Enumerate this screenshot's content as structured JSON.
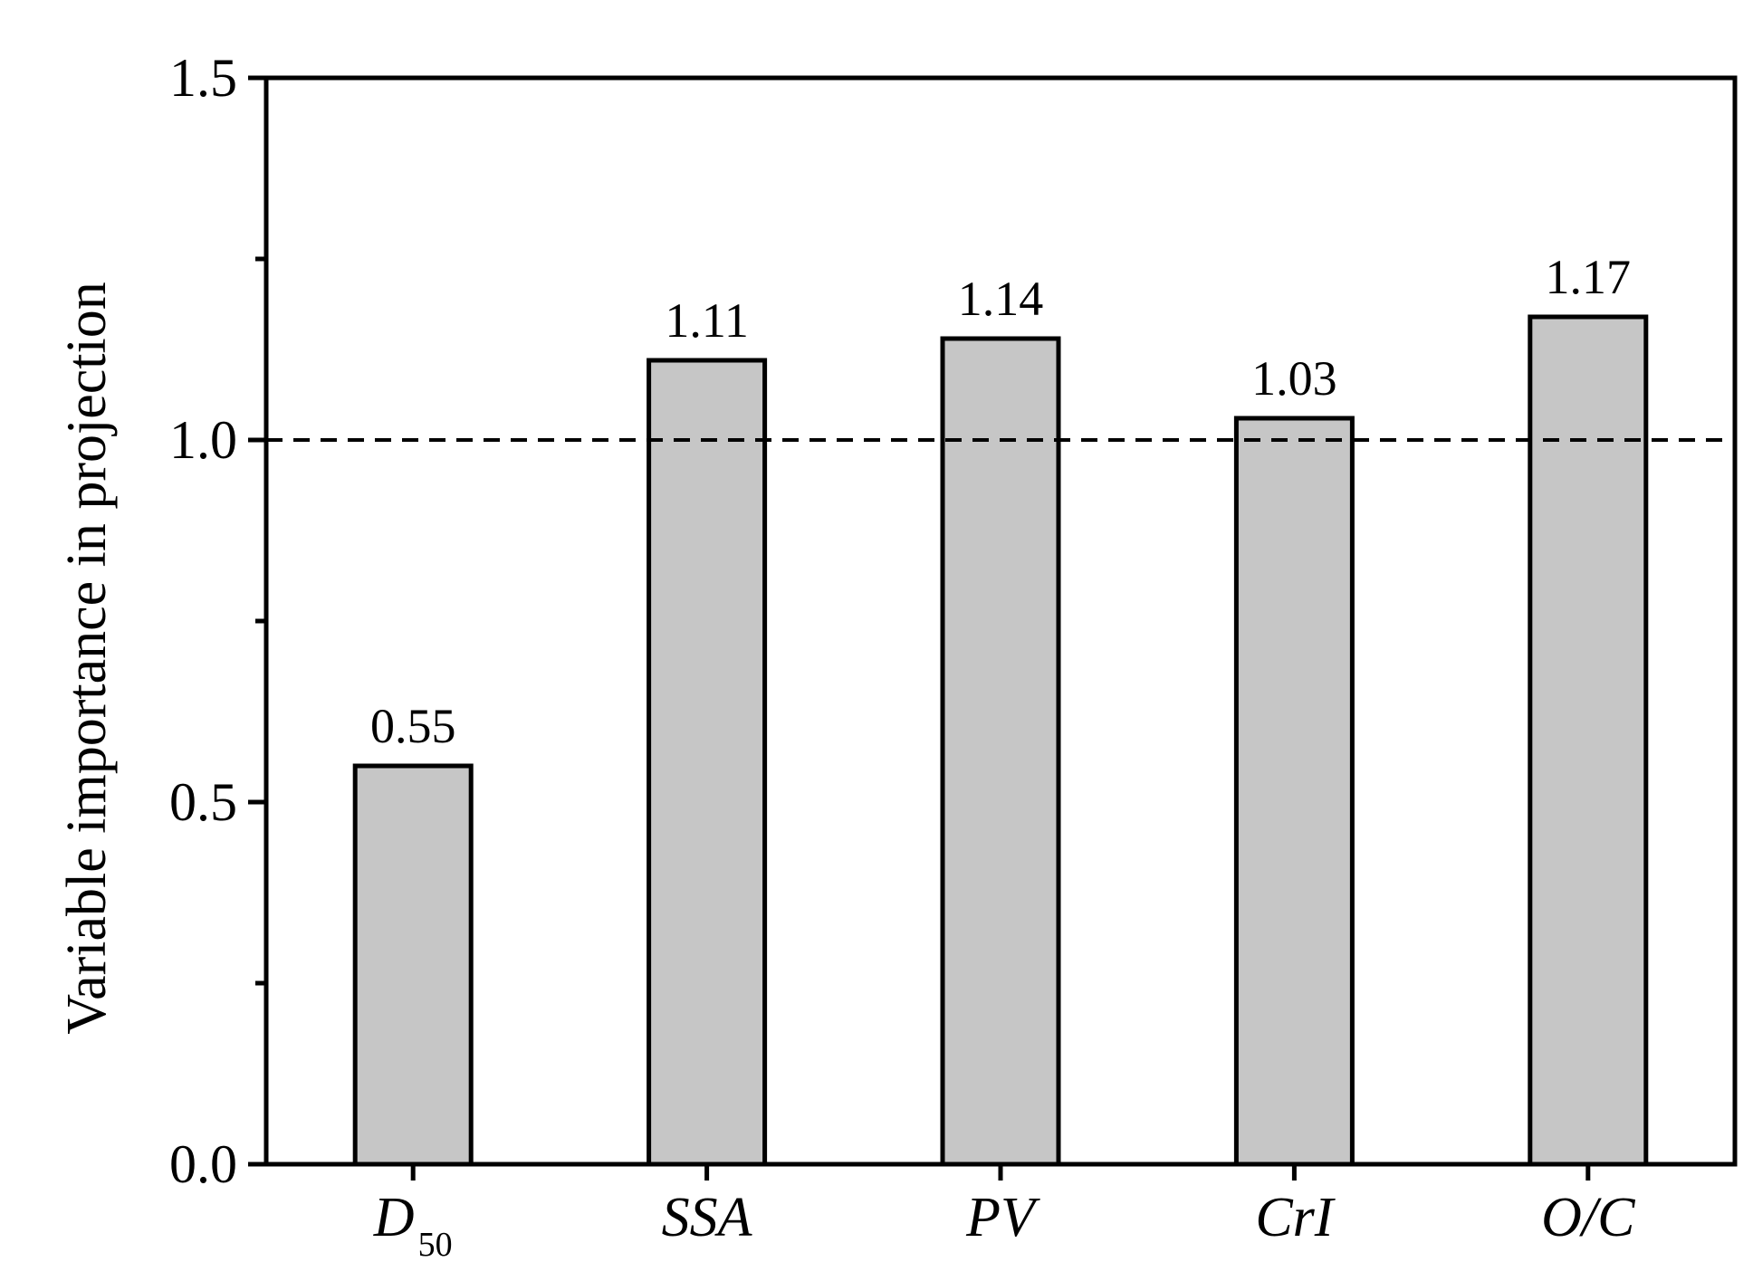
{
  "chart_data": {
    "type": "bar",
    "ylabel": "Variable importance in projection",
    "ylim": [
      0,
      1.5
    ],
    "yticks": [
      "0.0",
      "0.5",
      "1.0",
      "1.5"
    ],
    "categories": [
      {
        "main": "D",
        "sub": "50"
      },
      {
        "main": "SSA",
        "sub": ""
      },
      {
        "main": "PV",
        "sub": ""
      },
      {
        "main": "CrI",
        "sub": ""
      },
      {
        "main": "O/C",
        "sub": ""
      }
    ],
    "values": [
      0.55,
      1.11,
      1.14,
      1.03,
      1.17
    ],
    "value_labels": [
      "0.55",
      "1.11",
      "1.14",
      "1.03",
      "1.17"
    ],
    "reference_line": 1.0,
    "bar_color": "#c6c6c6",
    "edge_color": "#000000"
  }
}
